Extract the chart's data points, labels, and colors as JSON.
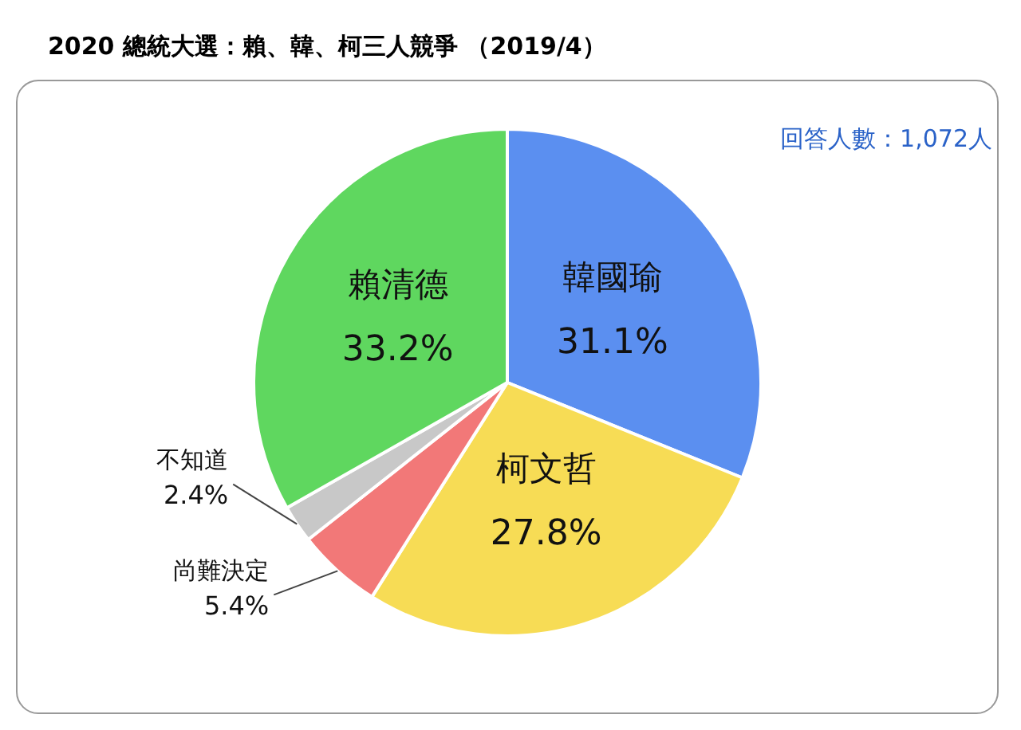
{
  "chart_data": {
    "type": "pie",
    "title": "2020 總統大選：賴、韓、柯三人競爭 （2019/4）",
    "annotations": [
      "回答人數：1,072人"
    ],
    "categories": [
      "韓國瑜",
      "柯文哲",
      "尚難決定",
      "不知道",
      "賴清德"
    ],
    "values": [
      31.1,
      27.8,
      5.4,
      2.4,
      33.2
    ],
    "value_labels": [
      "31.1%",
      "27.8%",
      "5.4%",
      "2.4%",
      "33.2%"
    ],
    "colors": [
      "#5b8ff0",
      "#f7dc55",
      "#f27878",
      "#c8c8c8",
      "#5fd75f"
    ],
    "legend": false
  }
}
